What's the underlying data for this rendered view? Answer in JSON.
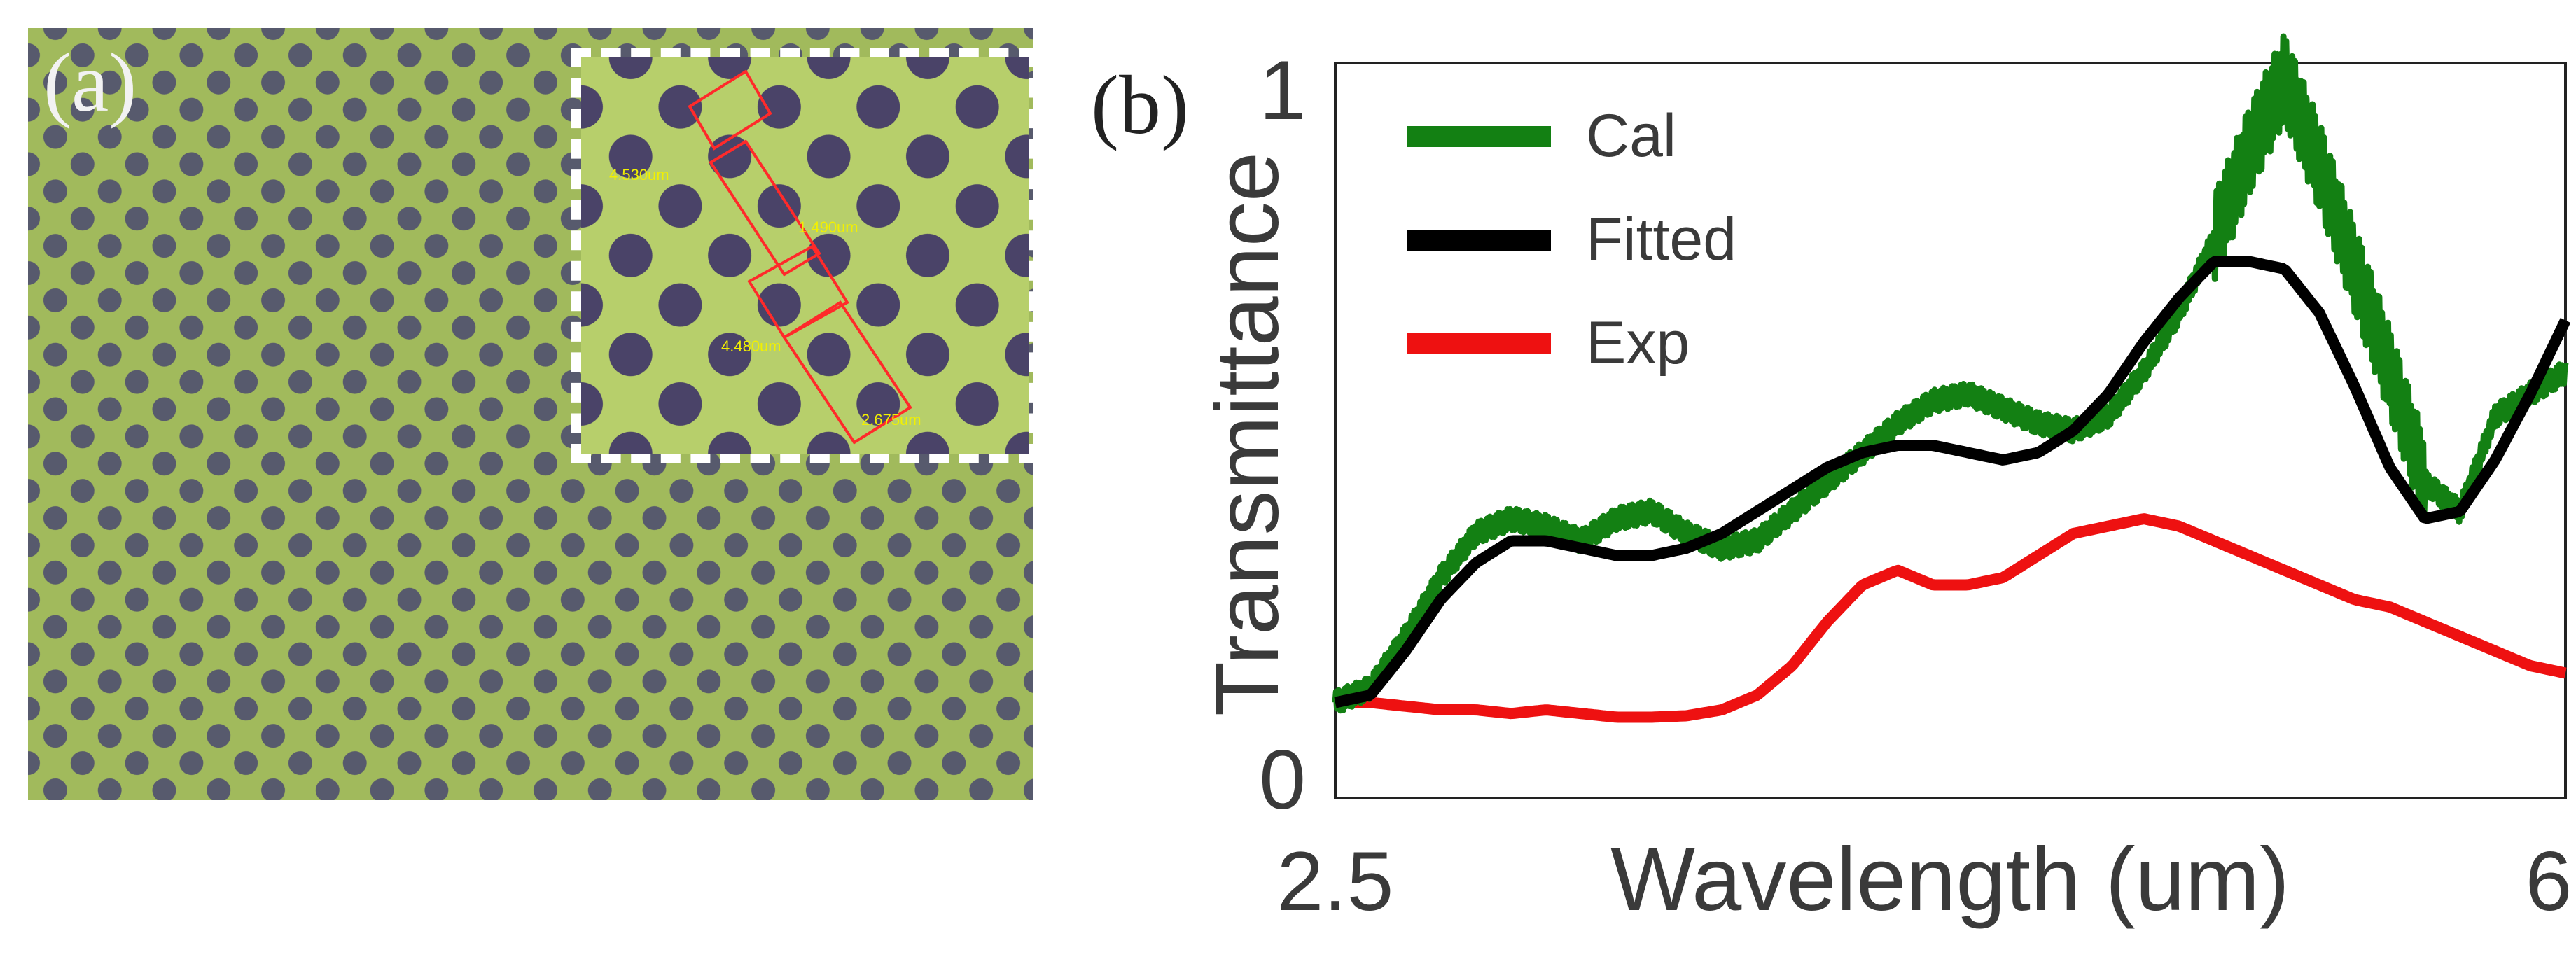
{
  "panel_a": {
    "label": "(a)",
    "inset_measurements": [
      "4.530um",
      "1.490um",
      "4.480um",
      "2.675um"
    ]
  },
  "panel_b": {
    "label": "(b)"
  },
  "chart_data": {
    "type": "line",
    "xlabel": "Wavelength (um)",
    "ylabel": "Transmittance",
    "xlim": [
      2.5,
      6
    ],
    "ylim": [
      0,
      1
    ],
    "x_ticks": [
      "2.5",
      "6"
    ],
    "y_ticks": [
      "0",
      "1"
    ],
    "grid": false,
    "legend_position": "top-left",
    "series": [
      {
        "name": "Cal",
        "color": "#138013",
        "x": [
          2.5,
          2.6,
          2.7,
          2.8,
          2.9,
          3.0,
          3.1,
          3.2,
          3.3,
          3.4,
          3.5,
          3.6,
          3.7,
          3.8,
          3.9,
          4.0,
          4.1,
          4.2,
          4.3,
          4.4,
          4.5,
          4.6,
          4.7,
          4.8,
          4.9,
          5.0,
          5.1,
          5.2,
          5.3,
          5.4,
          5.5,
          5.6,
          5.7,
          5.8,
          5.9,
          6.0
        ],
        "y": [
          0.13,
          0.15,
          0.22,
          0.3,
          0.36,
          0.38,
          0.37,
          0.35,
          0.38,
          0.39,
          0.36,
          0.34,
          0.35,
          0.39,
          0.43,
          0.47,
          0.51,
          0.54,
          0.55,
          0.53,
          0.51,
          0.5,
          0.52,
          0.58,
          0.66,
          0.76,
          0.88,
          0.98,
          0.86,
          0.72,
          0.58,
          0.43,
          0.39,
          0.52,
          0.55,
          0.58
        ],
        "note_style": "high-frequency oscillation around fitted curve"
      },
      {
        "name": "Fitted",
        "color": "#000000",
        "x": [
          2.5,
          2.6,
          2.7,
          2.8,
          2.9,
          3.0,
          3.1,
          3.2,
          3.3,
          3.4,
          3.5,
          3.6,
          3.7,
          3.8,
          3.9,
          4.0,
          4.1,
          4.2,
          4.3,
          4.4,
          4.5,
          4.6,
          4.7,
          4.8,
          4.9,
          5.0,
          5.1,
          5.2,
          5.3,
          5.4,
          5.5,
          5.6,
          5.7,
          5.8,
          5.9,
          6.0
        ],
        "y": [
          0.13,
          0.14,
          0.2,
          0.27,
          0.32,
          0.35,
          0.35,
          0.34,
          0.33,
          0.33,
          0.34,
          0.36,
          0.39,
          0.42,
          0.45,
          0.47,
          0.48,
          0.48,
          0.47,
          0.46,
          0.47,
          0.5,
          0.55,
          0.62,
          0.68,
          0.73,
          0.73,
          0.72,
          0.66,
          0.56,
          0.45,
          0.38,
          0.39,
          0.46,
          0.55,
          0.65
        ]
      },
      {
        "name": "Exp",
        "color": "#ee1111",
        "x": [
          2.5,
          2.6,
          2.7,
          2.8,
          2.9,
          3.0,
          3.1,
          3.2,
          3.3,
          3.4,
          3.5,
          3.6,
          3.7,
          3.8,
          3.9,
          4.0,
          4.1,
          4.2,
          4.3,
          4.4,
          4.5,
          4.6,
          4.7,
          4.8,
          4.9,
          5.0,
          5.1,
          5.2,
          5.3,
          5.4,
          5.5,
          5.6,
          5.7,
          5.8,
          5.9,
          6.0
        ],
        "y": [
          0.13,
          0.13,
          0.125,
          0.12,
          0.12,
          0.115,
          0.12,
          0.115,
          0.11,
          0.11,
          0.112,
          0.12,
          0.14,
          0.18,
          0.24,
          0.29,
          0.31,
          0.29,
          0.29,
          0.3,
          0.33,
          0.36,
          0.37,
          0.38,
          0.37,
          0.35,
          0.33,
          0.31,
          0.29,
          0.27,
          0.26,
          0.24,
          0.22,
          0.2,
          0.18,
          0.17
        ]
      }
    ]
  }
}
